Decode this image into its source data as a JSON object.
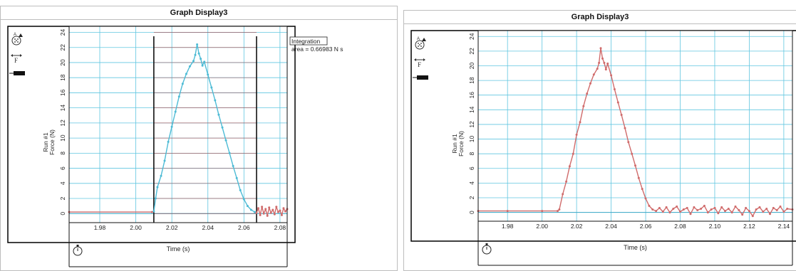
{
  "colors": {
    "left_trace": "#4dbbd5",
    "left_baseline": "#d06b6b",
    "right_trace": "#d06b6b",
    "grid": "#60c6e0",
    "integration_lines": "#a83a3a",
    "frame": "#000000"
  },
  "icons": [
    "magnify-accelerator-icon",
    "force-arrow-icon",
    "force-sensor-icon",
    "stopwatch-icon"
  ],
  "panels": [
    {
      "title": "Graph Display3",
      "chart_data": {
        "type": "line",
        "title": "Graph Display3",
        "xlabel": "Time (s)",
        "ylabel": "Force (N)",
        "run_label": "Run #1",
        "xlim": [
          1.963,
          2.084
        ],
        "ylim": [
          -1.2,
          24.8
        ],
        "xticks": [
          "1.98",
          "2.00",
          "2.02",
          "2.04",
          "2.06",
          "2.08"
        ],
        "yticks": [
          "0",
          "2",
          "4",
          "6",
          "8",
          "10",
          "12",
          "14",
          "16",
          "18",
          "20",
          "22",
          "24"
        ],
        "grid": true,
        "annotation": {
          "label": "Integration",
          "text": "area = 0.66983 N s"
        },
        "integration_bounds": [
          2.01,
          2.067
        ],
        "series": [
          {
            "role": "baseline-before",
            "x": [
              1.963,
              2.009
            ],
            "y": [
              0.2,
              0.2
            ]
          },
          {
            "role": "integrated-pulse",
            "x": [
              2.01,
              2.011,
              2.012,
              2.014,
              2.016,
              2.018,
              2.02,
              2.022,
              2.024,
              2.026,
              2.028,
              2.03,
              2.032,
              2.033,
              2.034,
              2.035,
              2.036,
              2.037,
              2.038,
              2.04,
              2.042,
              2.044,
              2.046,
              2.048,
              2.05,
              2.052,
              2.054,
              2.056,
              2.058,
              2.06,
              2.062,
              2.064,
              2.066,
              2.067
            ],
            "y": [
              0.3,
              2.0,
              3.5,
              5.0,
              7.0,
              9.5,
              11.5,
              13.5,
              15.5,
              17.2,
              18.5,
              19.5,
              20.2,
              21.0,
              22.4,
              21.2,
              20.5,
              19.6,
              20.1,
              18.4,
              16.7,
              15.0,
              13.1,
              11.4,
              9.7,
              8.0,
              6.3,
              4.7,
              3.1,
              1.9,
              1.0,
              0.5,
              0.2,
              0.1
            ]
          },
          {
            "role": "noise-after",
            "x": [
              2.067,
              2.068,
              2.069,
              2.07,
              2.071,
              2.072,
              2.073,
              2.074,
              2.075,
              2.076,
              2.077,
              2.078,
              2.079,
              2.08,
              2.081,
              2.082,
              2.083,
              2.084
            ],
            "y": [
              0.1,
              0.7,
              -0.2,
              0.9,
              0.0,
              0.6,
              -0.3,
              0.8,
              0.1,
              0.5,
              -0.1,
              0.9,
              0.2,
              0.4,
              -0.2,
              0.7,
              0.3,
              0.6
            ]
          }
        ]
      }
    },
    {
      "title": "Graph Display3",
      "chart_data": {
        "type": "line",
        "title": "Graph Display3",
        "xlabel": "Time (s)",
        "ylabel": "Force (N)",
        "run_label": "Run #1",
        "xlim": [
          1.963,
          2.145
        ],
        "ylim": [
          -1.2,
          24.8
        ],
        "xticks": [
          "1.98",
          "2.00",
          "2.02",
          "2.04",
          "2.06",
          "2.08",
          "2.10",
          "2.12",
          "2.14"
        ],
        "yticks": [
          "0",
          "2",
          "4",
          "6",
          "8",
          "10",
          "12",
          "14",
          "16",
          "18",
          "20",
          "22",
          "24"
        ],
        "grid": true,
        "series": [
          {
            "role": "force",
            "x": [
              1.963,
              1.98,
              2.0,
              2.009,
              2.01,
              2.012,
              2.014,
              2.016,
              2.018,
              2.02,
              2.022,
              2.024,
              2.026,
              2.028,
              2.03,
              2.032,
              2.033,
              2.034,
              2.035,
              2.036,
              2.037,
              2.038,
              2.04,
              2.042,
              2.044,
              2.046,
              2.048,
              2.05,
              2.052,
              2.054,
              2.056,
              2.058,
              2.06,
              2.062,
              2.064,
              2.066,
              2.068,
              2.07,
              2.072,
              2.074,
              2.076,
              2.078,
              2.08,
              2.082,
              2.084,
              2.086,
              2.088,
              2.09,
              2.092,
              2.094,
              2.096,
              2.098,
              2.1,
              2.102,
              2.104,
              2.106,
              2.108,
              2.11,
              2.112,
              2.114,
              2.116,
              2.118,
              2.12,
              2.122,
              2.124,
              2.126,
              2.128,
              2.13,
              2.132,
              2.134,
              2.136,
              2.138,
              2.14,
              2.142,
              2.145
            ],
            "y": [
              0.2,
              0.2,
              0.2,
              0.2,
              0.4,
              2.5,
              4.2,
              6.3,
              8.0,
              10.6,
              12.3,
              14.5,
              16.2,
              17.6,
              18.8,
              19.6,
              20.4,
              22.4,
              21.0,
              20.4,
              19.5,
              20.3,
              18.7,
              16.8,
              15.0,
              13.3,
              11.5,
              9.6,
              8.0,
              6.4,
              4.7,
              3.2,
              1.9,
              0.9,
              0.4,
              0.2,
              0.6,
              0.1,
              0.7,
              0.0,
              0.5,
              0.8,
              0.1,
              0.4,
              0.6,
              -0.2,
              0.7,
              0.3,
              0.5,
              0.9,
              0.0,
              0.4,
              0.6,
              -0.1,
              0.7,
              0.2,
              0.5,
              0.0,
              0.8,
              0.3,
              -0.3,
              0.6,
              0.2,
              -0.5,
              0.4,
              0.7,
              0.1,
              0.5,
              -0.2,
              0.6,
              0.3,
              0.8,
              0.1,
              0.5,
              0.4
            ]
          }
        ]
      }
    }
  ]
}
